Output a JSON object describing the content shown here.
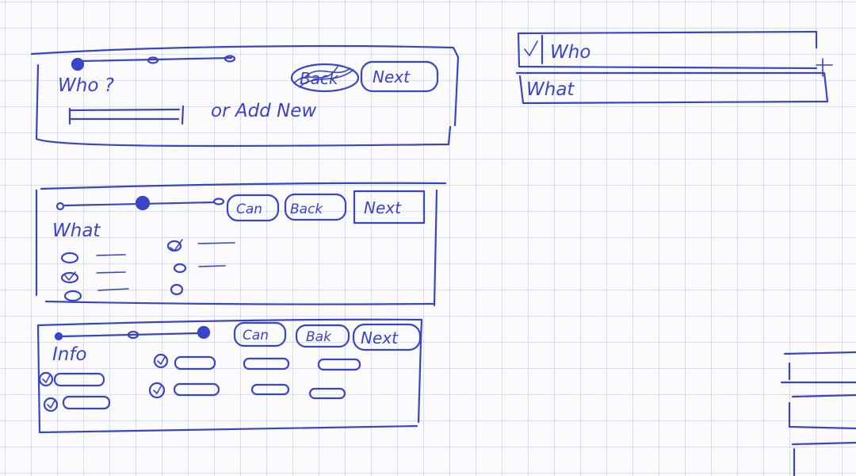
{
  "colors": {
    "ink": "#3a44c8",
    "paper": "#fbfbfe",
    "grid": "#96aae1"
  },
  "step_who": {
    "title": "Who ?",
    "back_label": "Back",
    "next_label": "Next",
    "add_new_text": "or Add New",
    "progress_step": 1,
    "progress_total": 3
  },
  "step_what": {
    "title": "What",
    "cancel_label": "Can",
    "back_label": "Back",
    "next_label": "Next",
    "progress_step": 2,
    "progress_total": 3,
    "left_options_checked": [
      false,
      true,
      false
    ],
    "right_options_checked": [
      true,
      false,
      false
    ]
  },
  "step_info": {
    "title": "Info",
    "cancel_label": "Can",
    "back_label": "Bak",
    "next_label": "Next",
    "progress_step": 3,
    "progress_total": 3
  },
  "accordion": {
    "who_label": "Who",
    "what_label": "What",
    "who_checked": true
  }
}
